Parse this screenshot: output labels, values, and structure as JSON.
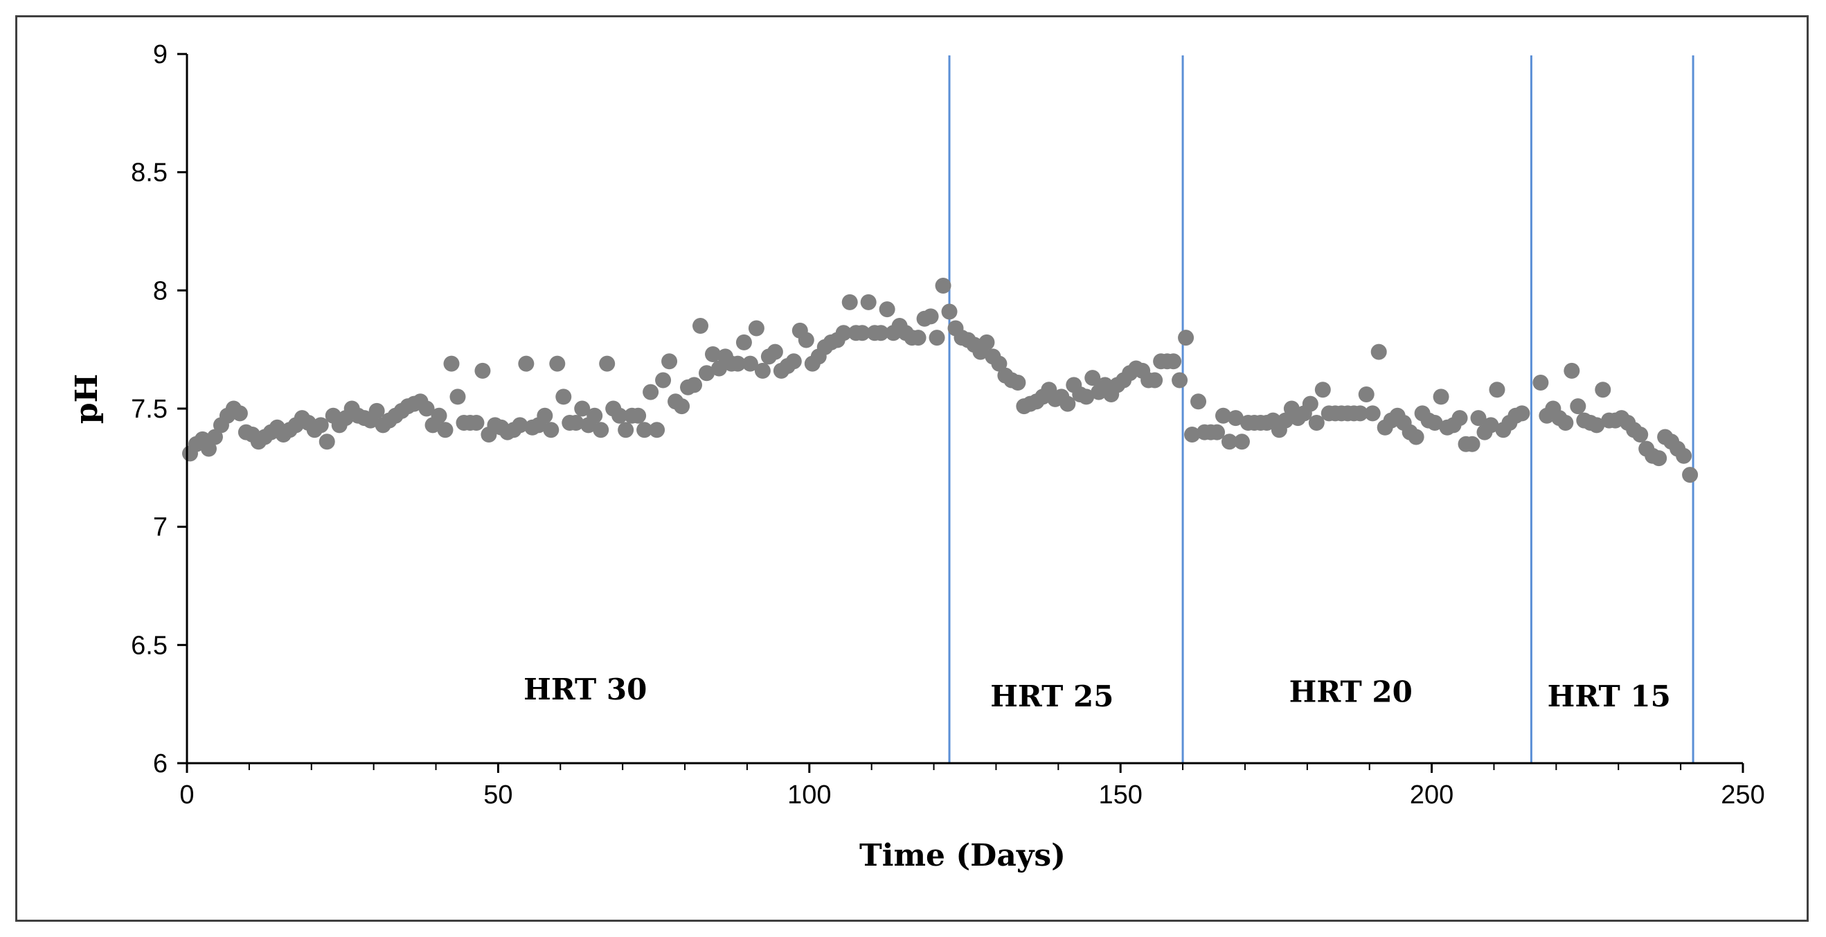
{
  "chart_data": {
    "type": "scatter",
    "title": "",
    "xlabel": "Time (Days)",
    "ylabel": "pH",
    "xlim": [
      0,
      250
    ],
    "ylim": [
      6,
      9
    ],
    "xticks": [
      0,
      50,
      100,
      150,
      200,
      250
    ],
    "yticks": [
      6,
      6.5,
      7,
      7.5,
      8,
      8.5,
      9
    ],
    "xtick_labels": [
      "0",
      "50",
      "100",
      "150",
      "200",
      "250"
    ],
    "ytick_labels": [
      "6",
      "6.5",
      "7",
      "7.5",
      "8",
      "8.5",
      "9"
    ],
    "grid": false,
    "legend": "none",
    "colors": {
      "points": "#808080",
      "phase_lines": "#5b8fd6",
      "axis": "#000000",
      "frame": "#404040"
    },
    "phase_boundaries": [
      122.5,
      160,
      216,
      242
    ],
    "annotations": [
      {
        "text": "HRT 30",
        "x": 64,
        "y": 6.27
      },
      {
        "text": "HRT 25",
        "x": 139,
        "y": 6.24
      },
      {
        "text": "HRT 20",
        "x": 187,
        "y": 6.26
      },
      {
        "text": "HRT 15",
        "x": 228.5,
        "y": 6.24
      }
    ],
    "series": [
      {
        "name": "pH",
        "points": [
          [
            0.5,
            7.31
          ],
          [
            1.5,
            7.35
          ],
          [
            2.5,
            7.37
          ],
          [
            3.5,
            7.33
          ],
          [
            4.5,
            7.38
          ],
          [
            5.5,
            7.43
          ],
          [
            6.5,
            7.47
          ],
          [
            7.5,
            7.5
          ],
          [
            8.5,
            7.48
          ],
          [
            9.5,
            7.4
          ],
          [
            10.5,
            7.39
          ],
          [
            11.5,
            7.36
          ],
          [
            12.5,
            7.38
          ],
          [
            13.5,
            7.4
          ],
          [
            14.5,
            7.42
          ],
          [
            15.5,
            7.39
          ],
          [
            16.5,
            7.41
          ],
          [
            17.5,
            7.43
          ],
          [
            18.5,
            7.46
          ],
          [
            19.5,
            7.44
          ],
          [
            20.5,
            7.41
          ],
          [
            21.5,
            7.43
          ],
          [
            22.5,
            7.36
          ],
          [
            23.5,
            7.47
          ],
          [
            24.5,
            7.43
          ],
          [
            25.5,
            7.46
          ],
          [
            26.5,
            7.5
          ],
          [
            27.5,
            7.47
          ],
          [
            28.5,
            7.46
          ],
          [
            29.5,
            7.45
          ],
          [
            30.5,
            7.49
          ],
          [
            31.5,
            7.43
          ],
          [
            32.5,
            7.45
          ],
          [
            33.5,
            7.47
          ],
          [
            34.5,
            7.49
          ],
          [
            35.5,
            7.51
          ],
          [
            36.5,
            7.52
          ],
          [
            37.5,
            7.53
          ],
          [
            38.5,
            7.5
          ],
          [
            39.5,
            7.43
          ],
          [
            40.5,
            7.47
          ],
          [
            41.5,
            7.41
          ],
          [
            42.5,
            7.69
          ],
          [
            43.5,
            7.55
          ],
          [
            44.5,
            7.44
          ],
          [
            45.5,
            7.44
          ],
          [
            46.5,
            7.44
          ],
          [
            47.5,
            7.66
          ],
          [
            48.5,
            7.39
          ],
          [
            49.5,
            7.43
          ],
          [
            50.5,
            7.42
          ],
          [
            51.5,
            7.4
          ],
          [
            52.5,
            7.41
          ],
          [
            53.5,
            7.43
          ],
          [
            54.5,
            7.69
          ],
          [
            55.5,
            7.42
          ],
          [
            56.5,
            7.43
          ],
          [
            57.5,
            7.47
          ],
          [
            58.5,
            7.41
          ],
          [
            59.5,
            7.69
          ],
          [
            60.5,
            7.55
          ],
          [
            61.5,
            7.44
          ],
          [
            62.5,
            7.44
          ],
          [
            63.5,
            7.5
          ],
          [
            64.5,
            7.43
          ],
          [
            65.5,
            7.47
          ],
          [
            66.5,
            7.41
          ],
          [
            67.5,
            7.69
          ],
          [
            68.5,
            7.5
          ],
          [
            69.5,
            7.47
          ],
          [
            70.5,
            7.41
          ],
          [
            71.5,
            7.47
          ],
          [
            72.5,
            7.47
          ],
          [
            73.5,
            7.41
          ],
          [
            74.5,
            7.57
          ],
          [
            75.5,
            7.41
          ],
          [
            76.5,
            7.62
          ],
          [
            77.5,
            7.7
          ],
          [
            78.5,
            7.53
          ],
          [
            79.5,
            7.51
          ],
          [
            80.5,
            7.59
          ],
          [
            81.5,
            7.6
          ],
          [
            82.5,
            7.85
          ],
          [
            83.5,
            7.65
          ],
          [
            84.5,
            7.73
          ],
          [
            85.5,
            7.67
          ],
          [
            86.5,
            7.72
          ],
          [
            87.5,
            7.69
          ],
          [
            88.5,
            7.69
          ],
          [
            89.5,
            7.78
          ],
          [
            90.5,
            7.69
          ],
          [
            91.5,
            7.84
          ],
          [
            92.5,
            7.66
          ],
          [
            93.5,
            7.72
          ],
          [
            94.5,
            7.74
          ],
          [
            95.5,
            7.66
          ],
          [
            96.5,
            7.68
          ],
          [
            97.5,
            7.7
          ],
          [
            98.5,
            7.83
          ],
          [
            99.5,
            7.79
          ],
          [
            100.5,
            7.69
          ],
          [
            101.5,
            7.72
          ],
          [
            102.5,
            7.76
          ],
          [
            103.5,
            7.78
          ],
          [
            104.5,
            7.79
          ],
          [
            105.5,
            7.82
          ],
          [
            106.5,
            7.95
          ],
          [
            107.5,
            7.82
          ],
          [
            108.5,
            7.82
          ],
          [
            109.5,
            7.95
          ],
          [
            110.5,
            7.82
          ],
          [
            111.5,
            7.82
          ],
          [
            112.5,
            7.92
          ],
          [
            113.5,
            7.82
          ],
          [
            114.5,
            7.85
          ],
          [
            115.5,
            7.82
          ],
          [
            116.5,
            7.8
          ],
          [
            117.5,
            7.8
          ],
          [
            118.5,
            7.88
          ],
          [
            119.5,
            7.89
          ],
          [
            120.5,
            7.8
          ],
          [
            121.5,
            8.02
          ],
          [
            122.5,
            7.91
          ],
          [
            123.5,
            7.84
          ],
          [
            124.5,
            7.8
          ],
          [
            125.5,
            7.79
          ],
          [
            126.5,
            7.77
          ],
          [
            127.5,
            7.74
          ],
          [
            128.5,
            7.78
          ],
          [
            129.5,
            7.72
          ],
          [
            130.5,
            7.69
          ],
          [
            131.5,
            7.64
          ],
          [
            132.5,
            7.62
          ],
          [
            133.5,
            7.61
          ],
          [
            134.5,
            7.51
          ],
          [
            135.5,
            7.52
          ],
          [
            136.5,
            7.53
          ],
          [
            137.5,
            7.55
          ],
          [
            138.5,
            7.58
          ],
          [
            139.5,
            7.54
          ],
          [
            140.5,
            7.55
          ],
          [
            141.5,
            7.52
          ],
          [
            142.5,
            7.6
          ],
          [
            143.5,
            7.56
          ],
          [
            144.5,
            7.55
          ],
          [
            145.5,
            7.63
          ],
          [
            146.5,
            7.57
          ],
          [
            147.5,
            7.6
          ],
          [
            148.5,
            7.56
          ],
          [
            149.5,
            7.6
          ],
          [
            150.5,
            7.62
          ],
          [
            151.5,
            7.65
          ],
          [
            152.5,
            7.67
          ],
          [
            153.5,
            7.66
          ],
          [
            154.5,
            7.62
          ],
          [
            155.5,
            7.62
          ],
          [
            156.5,
            7.7
          ],
          [
            157.5,
            7.7
          ],
          [
            158.5,
            7.7
          ],
          [
            159.5,
            7.62
          ],
          [
            160.5,
            7.8
          ],
          [
            161.5,
            7.39
          ],
          [
            162.5,
            7.53
          ],
          [
            163.5,
            7.4
          ],
          [
            164.5,
            7.4
          ],
          [
            165.5,
            7.4
          ],
          [
            166.5,
            7.47
          ],
          [
            167.5,
            7.36
          ],
          [
            168.5,
            7.46
          ],
          [
            169.5,
            7.36
          ],
          [
            170.5,
            7.44
          ],
          [
            171.5,
            7.44
          ],
          [
            172.5,
            7.44
          ],
          [
            173.5,
            7.44
          ],
          [
            174.5,
            7.45
          ],
          [
            175.5,
            7.41
          ],
          [
            176.5,
            7.45
          ],
          [
            177.5,
            7.5
          ],
          [
            178.5,
            7.46
          ],
          [
            179.5,
            7.48
          ],
          [
            180.5,
            7.52
          ],
          [
            181.5,
            7.44
          ],
          [
            182.5,
            7.58
          ],
          [
            183.5,
            7.48
          ],
          [
            184.5,
            7.48
          ],
          [
            185.5,
            7.48
          ],
          [
            186.5,
            7.48
          ],
          [
            187.5,
            7.48
          ],
          [
            188.5,
            7.48
          ],
          [
            189.5,
            7.56
          ],
          [
            190.5,
            7.48
          ],
          [
            191.5,
            7.74
          ],
          [
            192.5,
            7.42
          ],
          [
            193.5,
            7.45
          ],
          [
            194.5,
            7.47
          ],
          [
            195.5,
            7.44
          ],
          [
            196.5,
            7.4
          ],
          [
            197.5,
            7.38
          ],
          [
            198.5,
            7.48
          ],
          [
            199.5,
            7.45
          ],
          [
            200.5,
            7.44
          ],
          [
            201.5,
            7.55
          ],
          [
            202.5,
            7.42
          ],
          [
            203.5,
            7.43
          ],
          [
            204.5,
            7.46
          ],
          [
            205.5,
            7.35
          ],
          [
            206.5,
            7.35
          ],
          [
            207.5,
            7.46
          ],
          [
            208.5,
            7.4
          ],
          [
            209.5,
            7.43
          ],
          [
            210.5,
            7.58
          ],
          [
            211.5,
            7.41
          ],
          [
            212.5,
            7.44
          ],
          [
            213.5,
            7.47
          ],
          [
            214.5,
            7.48
          ],
          [
            217.5,
            7.61
          ],
          [
            218.5,
            7.47
          ],
          [
            219.5,
            7.5
          ],
          [
            220.5,
            7.46
          ],
          [
            221.5,
            7.44
          ],
          [
            222.5,
            7.66
          ],
          [
            223.5,
            7.51
          ],
          [
            224.5,
            7.45
          ],
          [
            225.5,
            7.44
          ],
          [
            226.5,
            7.43
          ],
          [
            227.5,
            7.58
          ],
          [
            228.5,
            7.45
          ],
          [
            229.5,
            7.45
          ],
          [
            230.5,
            7.46
          ],
          [
            231.5,
            7.44
          ],
          [
            232.5,
            7.41
          ],
          [
            233.5,
            7.39
          ],
          [
            234.5,
            7.33
          ],
          [
            235.5,
            7.3
          ],
          [
            236.5,
            7.29
          ],
          [
            237.5,
            7.38
          ],
          [
            238.5,
            7.36
          ],
          [
            239.5,
            7.33
          ],
          [
            240.5,
            7.3
          ],
          [
            241.5,
            7.22
          ]
        ]
      }
    ]
  }
}
